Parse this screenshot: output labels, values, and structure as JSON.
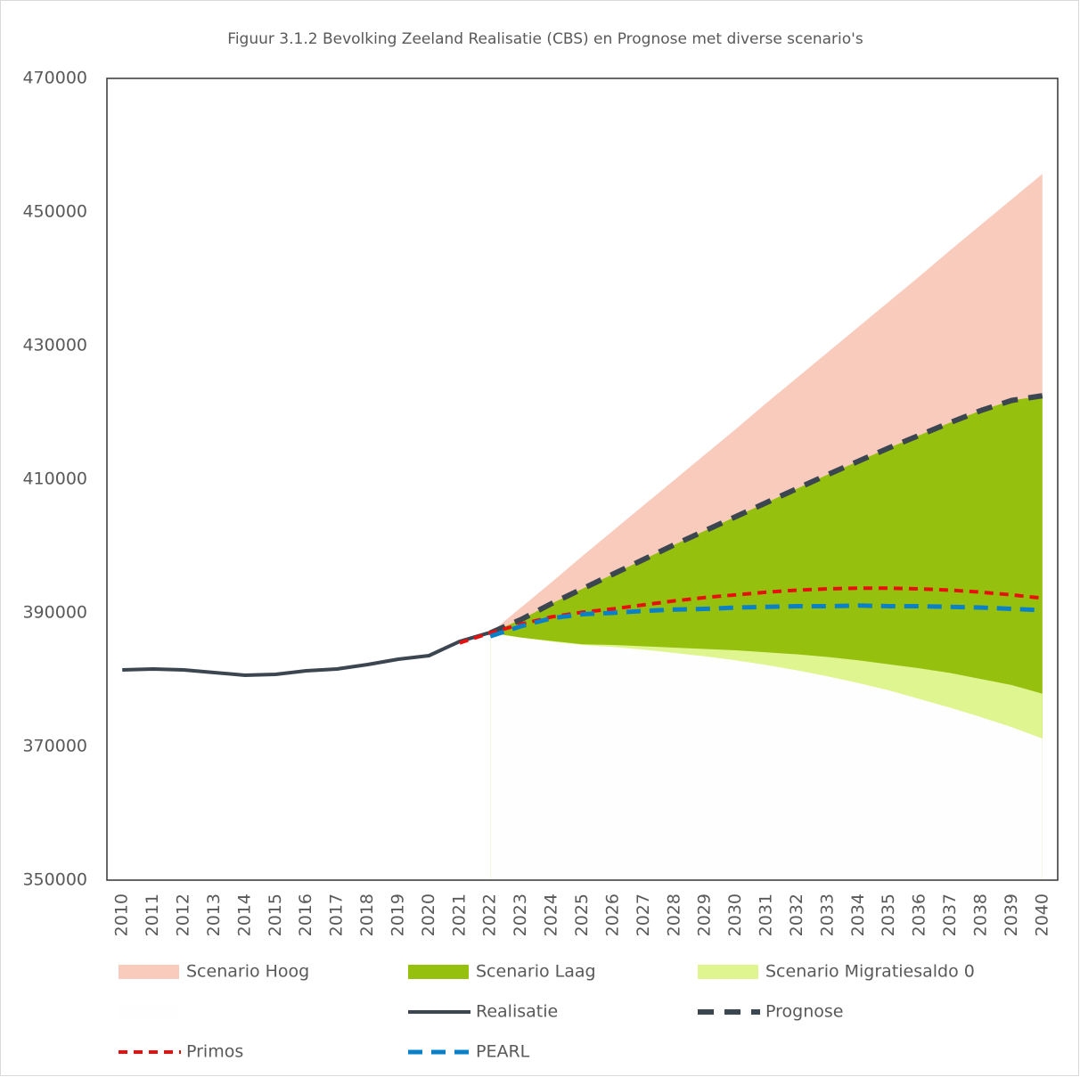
{
  "chart_data": {
    "type": "line",
    "title": "Figuur 3.1.2 Bevolking Zeeland Realisatie (CBS) en Prognose met diverse scenario's",
    "categories": [
      "2010",
      "2011",
      "2012",
      "2013",
      "2014",
      "2015",
      "2016",
      "2017",
      "2018",
      "2019",
      "2020",
      "2021",
      "2022",
      "2023",
      "2024",
      "2025",
      "2026",
      "2027",
      "2028",
      "2029",
      "2030",
      "2031",
      "2032",
      "2033",
      "2034",
      "2035",
      "2036",
      "2037",
      "2038",
      "2039",
      "2040"
    ],
    "ylim": [
      350000,
      470000
    ],
    "yticks": [
      350000,
      370000,
      390000,
      410000,
      430000,
      450000,
      470000
    ],
    "series": [
      {
        "name": "Scenario Hoog",
        "type": "area",
        "color": "#f8cbbd",
        "values": [
          null,
          null,
          null,
          null,
          null,
          null,
          null,
          null,
          null,
          null,
          null,
          null,
          387000,
          390800,
          394600,
          398500,
          402300,
          406100,
          409900,
          413700,
          417500,
          421400,
          425200,
          429000,
          432800,
          436600,
          440400,
          444300,
          448100,
          451900,
          455700
        ]
      },
      {
        "name": "Scenario Laag",
        "type": "area",
        "color": "#95c00e",
        "values": [
          null,
          null,
          null,
          null,
          null,
          null,
          null,
          null,
          null,
          null,
          null,
          null,
          387000,
          389000,
          391400,
          393600,
          395800,
          398000,
          400200,
          402300,
          404400,
          406500,
          408600,
          410700,
          412700,
          414700,
          416600,
          418500,
          420300,
          421800,
          422500
        ]
      },
      {
        "name": "Scenario Migratiesaldo 0",
        "type": "area",
        "color": "#dff58f",
        "values": [
          null,
          null,
          null,
          null,
          null,
          null,
          null,
          null,
          null,
          null,
          null,
          null,
          387000,
          386300,
          385800,
          385300,
          385200,
          385000,
          384800,
          384600,
          384400,
          384100,
          383800,
          383400,
          382900,
          382300,
          381700,
          381000,
          380100,
          379200,
          377900
        ]
      },
      {
        "type": "area",
        "color": "#fefefe",
        "values": [
          null,
          null,
          null,
          null,
          null,
          null,
          null,
          null,
          null,
          null,
          null,
          null,
          387000,
          386300,
          385700,
          385200,
          384900,
          384500,
          384000,
          383500,
          382900,
          382200,
          381400,
          380500,
          379500,
          378400,
          377100,
          375800,
          374400,
          372900,
          371200
        ]
      },
      {
        "name": "Realisatie",
        "type": "line",
        "color": "#3c4650",
        "dash": "solid",
        "values": [
          381470,
          381600,
          381470,
          381070,
          380670,
          380800,
          381330,
          381600,
          382270,
          383070,
          383600,
          385730,
          387070,
          null,
          null,
          null,
          null,
          null,
          null,
          null,
          null,
          null,
          null,
          null,
          null,
          null,
          null,
          null,
          null,
          null,
          null
        ]
      },
      {
        "name": "Prognose",
        "type": "line",
        "color": "#3c4650",
        "dash": "long",
        "values": [
          null,
          null,
          null,
          null,
          null,
          null,
          null,
          null,
          null,
          null,
          null,
          null,
          387000,
          389000,
          391400,
          393600,
          395800,
          398000,
          400200,
          402300,
          404400,
          406500,
          408600,
          410700,
          412700,
          414700,
          416600,
          418500,
          420300,
          421800,
          422500
        ]
      },
      {
        "name": "Primos",
        "type": "line",
        "color": "#e8100f",
        "dash": "short",
        "values": [
          null,
          null,
          null,
          null,
          null,
          null,
          null,
          null,
          null,
          null,
          null,
          385500,
          387000,
          388300,
          389400,
          390100,
          390600,
          391200,
          391800,
          392300,
          392700,
          393100,
          393400,
          393600,
          393700,
          393700,
          393600,
          393400,
          393100,
          392700,
          392200
        ]
      },
      {
        "name": "PEARL",
        "type": "line",
        "color": "#0a80c8",
        "dash": "medium",
        "values": [
          null,
          null,
          null,
          null,
          null,
          null,
          null,
          null,
          null,
          null,
          null,
          null,
          386500,
          388000,
          389200,
          389800,
          390000,
          390300,
          390500,
          390600,
          390800,
          390900,
          391000,
          391000,
          391100,
          391000,
          391000,
          390900,
          390800,
          390600,
          390400
        ]
      }
    ]
  }
}
